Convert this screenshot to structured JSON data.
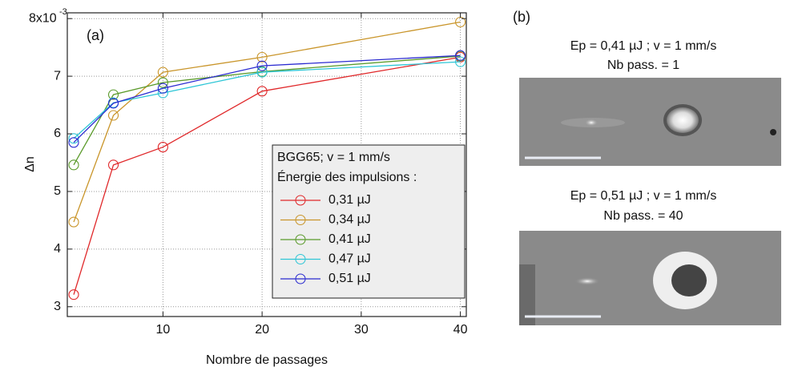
{
  "chart_data": {
    "type": "line",
    "panel_label": "(a)",
    "x_label": "Nombre de passages",
    "y_label": "Δn",
    "x": [
      1,
      5,
      10,
      20,
      40
    ],
    "series": [
      {
        "name": "0,31 µJ",
        "color": "#e0282a",
        "values": [
          3.21,
          5.46,
          5.77,
          6.74,
          7.33
        ]
      },
      {
        "name": "0,34 µJ",
        "color": "#c9952a",
        "values": [
          4.47,
          6.32,
          7.07,
          7.33,
          7.94
        ]
      },
      {
        "name": "0,41 µJ",
        "color": "#5a9a2a",
        "values": [
          5.46,
          6.68,
          6.89,
          7.08,
          7.35
        ]
      },
      {
        "name": "0,47 µJ",
        "color": "#2ec6d6",
        "values": [
          5.92,
          6.54,
          6.71,
          7.07,
          7.25
        ]
      },
      {
        "name": "0,51 µJ",
        "color": "#2a2ad0",
        "values": [
          5.85,
          6.53,
          6.79,
          7.18,
          7.36
        ]
      }
    ],
    "xlim": [
      0.35,
      40.6
    ],
    "xticks": [
      10,
      20,
      30,
      40
    ],
    "ylim": [
      2.83,
      8.1
    ],
    "yticks": [
      3,
      4,
      5,
      6,
      7,
      {
        "value": 8,
        "label": "8x10"
      }
    ],
    "y_exponent": "-3",
    "grid": true,
    "legend_title": [
      "BGG65; v = 1 mm/s",
      "Énergie des impulsions :"
    ],
    "legend_position": "lower right"
  },
  "panel_b": {
    "label": "(b)",
    "images": [
      {
        "caption": [
          "Ep = 0,41 µJ ; v = 1 mm/s",
          "Nb pass. = 1"
        ]
      },
      {
        "caption": [
          "Ep = 0,51 µJ ; v = 1 mm/s",
          "Nb pass. = 40"
        ]
      }
    ]
  }
}
